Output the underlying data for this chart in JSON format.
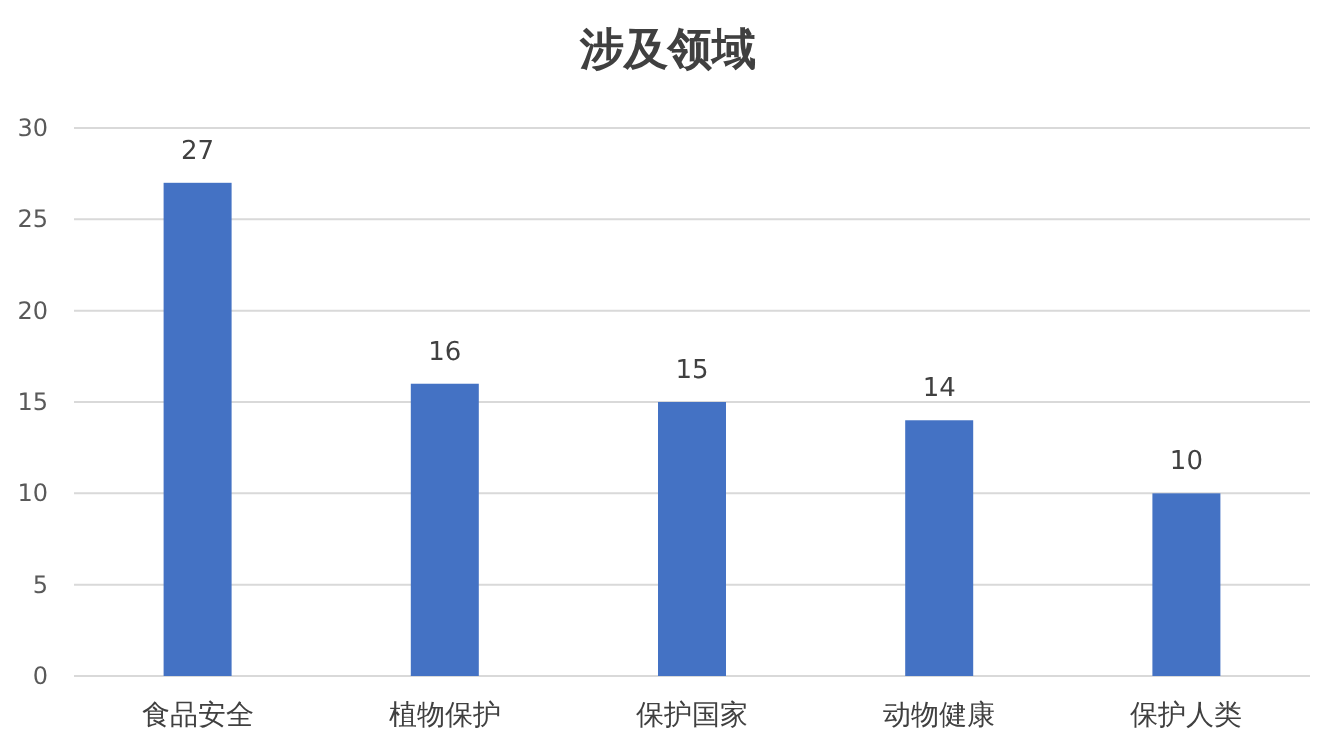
{
  "chart_data": {
    "type": "bar",
    "title": "涉及领域",
    "categories": [
      "食品安全",
      "植物保护",
      "保护国家",
      "动物健康",
      "保护人类"
    ],
    "values": [
      27,
      16,
      15,
      14,
      10
    ],
    "color": "#4472c4",
    "ylim": [
      0,
      30
    ],
    "yticks": [
      0,
      5,
      10,
      15,
      20,
      25,
      30
    ],
    "grid": "y",
    "data_labels": true
  }
}
